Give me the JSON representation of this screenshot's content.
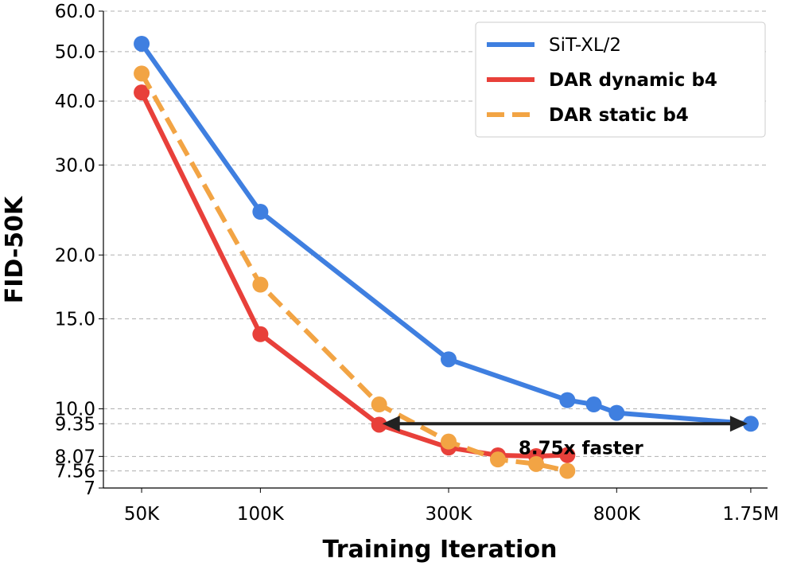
{
  "chart_data": {
    "type": "line",
    "xlabel": "Training Iteration",
    "ylabel": "FID-50K",
    "xscale": "log",
    "yscale": "log",
    "xlim": [
      40000,
      1930000
    ],
    "ylim": [
      7,
      60
    ],
    "xticks": [
      {
        "value": 50000,
        "label": "50K"
      },
      {
        "value": 100000,
        "label": "100K"
      },
      {
        "value": 300000,
        "label": "300K"
      },
      {
        "value": 800000,
        "label": "800K"
      },
      {
        "value": 1750000,
        "label": "1.75M"
      }
    ],
    "yticks": [
      {
        "value": 7,
        "label": "7"
      },
      {
        "value": 7.56,
        "label": "7.56"
      },
      {
        "value": 8.07,
        "label": "8.07"
      },
      {
        "value": 9.35,
        "label": "9.35"
      },
      {
        "value": 10,
        "label": "10.0"
      },
      {
        "value": 15,
        "label": "15.0"
      },
      {
        "value": 20,
        "label": "20.0"
      },
      {
        "value": 30,
        "label": "30.0"
      },
      {
        "value": 40,
        "label": "40.0"
      },
      {
        "value": 50,
        "label": "50.0"
      },
      {
        "value": 60,
        "label": "60.0"
      }
    ],
    "grid": true,
    "legend": "upper right",
    "series": [
      {
        "name": "SiT-XL/2",
        "color": "#3f7fe0",
        "linestyle": "solid",
        "x": [
          50000,
          100000,
          300000,
          600000,
          700000,
          800000,
          1750000
        ],
        "values": [
          51.8,
          24.3,
          12.5,
          10.4,
          10.2,
          9.82,
          9.35
        ]
      },
      {
        "name": "DAR dynamic b4",
        "color": "#e8403a",
        "linestyle": "solid",
        "x": [
          50000,
          100000,
          200000,
          300000,
          400000,
          500000,
          600000
        ],
        "values": [
          41.6,
          14.0,
          9.31,
          8.4,
          8.11,
          8.08,
          8.12
        ]
      },
      {
        "name": "DAR static b4",
        "color": "#f2a444",
        "linestyle": "dashed",
        "x": [
          50000,
          100000,
          200000,
          300000,
          400000,
          500000,
          600000
        ],
        "values": [
          45.3,
          17.5,
          10.2,
          8.63,
          7.96,
          7.8,
          7.56
        ]
      }
    ],
    "annotation": {
      "text": "8.75x faster",
      "from": 200000,
      "to": 1750000,
      "y": 9.35
    }
  }
}
